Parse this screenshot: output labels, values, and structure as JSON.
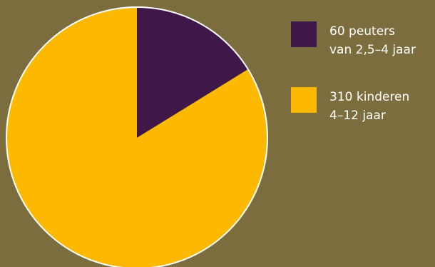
{
  "colors": {
    "background": "#7c6d3f",
    "outline": "#ffffff"
  },
  "chart_data": {
    "type": "pie",
    "title": "",
    "slices": [
      {
        "value": 60,
        "color": "#3f1748",
        "label_line1": "60 peuters",
        "label_line2": "van 2,5–4 jaar"
      },
      {
        "value": 310,
        "color": "#fcb900",
        "label_line1": "310 kinderen",
        "label_line2": "4–12 jaar"
      }
    ],
    "legend_position": "right",
    "start_angle_deg": 0,
    "direction": "clockwise"
  }
}
